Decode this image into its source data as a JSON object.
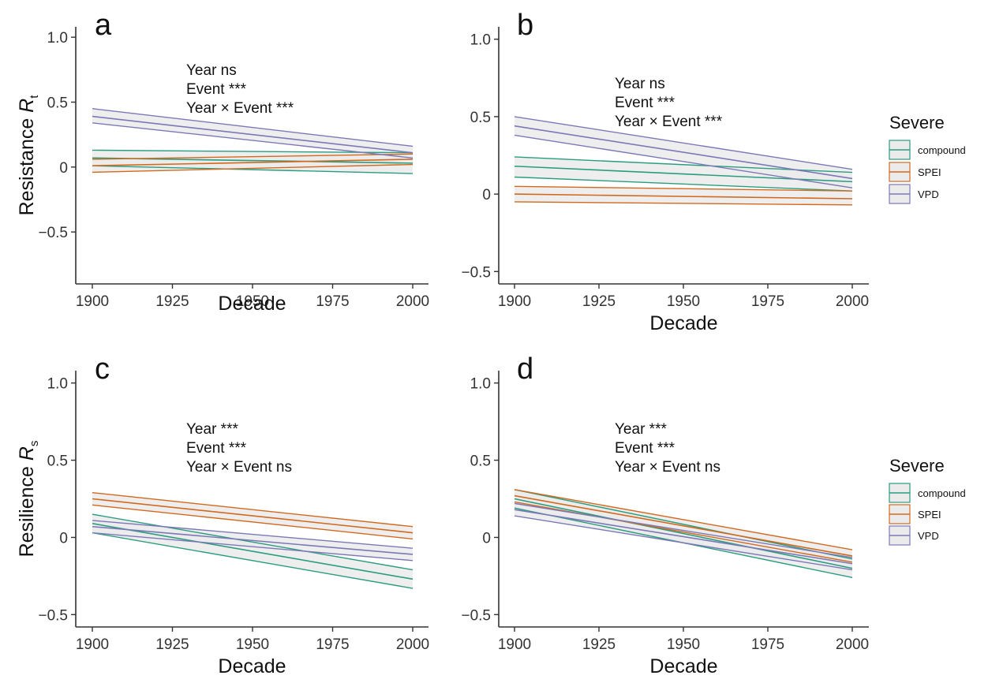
{
  "colors": {
    "compound": "#2a9d7e",
    "SPEI": "#d2691e",
    "VPD": "#7c78b8",
    "band_fill": "#ebebeb"
  },
  "legend": {
    "title": "Severe",
    "entries": [
      "compound",
      "SPEI",
      "VPD"
    ]
  },
  "chart_data": [
    {
      "panel": "a",
      "type": "line",
      "xlabel": "Decade",
      "ylabel_main": "Resistance ",
      "ylabel_sub": "t",
      "xlim": [
        1900,
        2000
      ],
      "ylim": [
        -0.9,
        1.08
      ],
      "xticks": [
        1900,
        1925,
        1950,
        1975,
        2000
      ],
      "yticks": [
        -0.5,
        0,
        0.5,
        1.0
      ],
      "ytick_labels": [
        "−0.5",
        "0",
        "0.5",
        "1.0"
      ],
      "annotation": [
        "Year ns",
        "Event ***",
        "Year × Event ***"
      ],
      "series": [
        {
          "name": "compound",
          "x": [
            1900,
            2000
          ],
          "y": [
            0.07,
            0.03
          ],
          "lower": [
            0.01,
            -0.05
          ],
          "upper": [
            0.13,
            0.11
          ]
        },
        {
          "name": "SPEI",
          "x": [
            1900,
            2000
          ],
          "y": [
            0.01,
            0.06
          ],
          "lower": [
            -0.04,
            0.02
          ],
          "upper": [
            0.06,
            0.1
          ]
        },
        {
          "name": "VPD",
          "x": [
            1900,
            2000
          ],
          "y": [
            0.39,
            0.11
          ],
          "lower": [
            0.34,
            0.07
          ],
          "upper": [
            0.45,
            0.16
          ]
        }
      ]
    },
    {
      "panel": "b",
      "type": "line",
      "xlabel": "Decade",
      "ylabel_main": "",
      "ylabel_sub": "",
      "xlim": [
        1900,
        2000
      ],
      "ylim": [
        -0.58,
        1.08
      ],
      "xticks": [
        1900,
        1925,
        1950,
        1975,
        2000
      ],
      "yticks": [
        -0.5,
        0,
        0.5,
        1.0
      ],
      "ytick_labels": [
        "−0.5",
        "0",
        "0.5",
        "1.0"
      ],
      "annotation": [
        "Year ns",
        "Event ***",
        "Year × Event ***"
      ],
      "series": [
        {
          "name": "compound",
          "x": [
            1900,
            2000
          ],
          "y": [
            0.18,
            0.08
          ],
          "lower": [
            0.11,
            0.02
          ],
          "upper": [
            0.24,
            0.14
          ]
        },
        {
          "name": "SPEI",
          "x": [
            1900,
            2000
          ],
          "y": [
            0.0,
            -0.03
          ],
          "lower": [
            -0.05,
            -0.07
          ],
          "upper": [
            0.05,
            0.02
          ]
        },
        {
          "name": "VPD",
          "x": [
            1900,
            2000
          ],
          "y": [
            0.44,
            0.1
          ],
          "lower": [
            0.38,
            0.04
          ],
          "upper": [
            0.5,
            0.16
          ]
        }
      ]
    },
    {
      "panel": "c",
      "type": "line",
      "xlabel": "Decade",
      "ylabel_main": "Resilience ",
      "ylabel_sub": "s",
      "xlim": [
        1900,
        2000
      ],
      "ylim": [
        -0.58,
        1.08
      ],
      "xticks": [
        1900,
        1925,
        1950,
        1975,
        2000
      ],
      "yticks": [
        -0.5,
        0,
        0.5,
        1.0
      ],
      "ytick_labels": [
        "−0.5",
        "0",
        "0.5",
        "1.0"
      ],
      "annotation": [
        "Year ***",
        "Event ***",
        "Year × Event ns"
      ],
      "series": [
        {
          "name": "compound",
          "x": [
            1900,
            2000
          ],
          "y": [
            0.09,
            -0.27
          ],
          "lower": [
            0.03,
            -0.33
          ],
          "upper": [
            0.15,
            -0.21
          ]
        },
        {
          "name": "SPEI",
          "x": [
            1900,
            2000
          ],
          "y": [
            0.25,
            0.03
          ],
          "lower": [
            0.21,
            -0.01
          ],
          "upper": [
            0.29,
            0.07
          ]
        },
        {
          "name": "VPD",
          "x": [
            1900,
            2000
          ],
          "y": [
            0.07,
            -0.11
          ],
          "lower": [
            0.03,
            -0.15
          ],
          "upper": [
            0.11,
            -0.07
          ]
        }
      ]
    },
    {
      "panel": "d",
      "type": "line",
      "xlabel": "Decade",
      "ylabel_main": "",
      "ylabel_sub": "",
      "xlim": [
        1900,
        2000
      ],
      "ylim": [
        -0.58,
        1.08
      ],
      "xticks": [
        1900,
        1925,
        1950,
        1975,
        2000
      ],
      "yticks": [
        -0.5,
        0,
        0.5,
        1.0
      ],
      "ytick_labels": [
        "−0.5",
        "0",
        "0.5",
        "1.0"
      ],
      "annotation": [
        "Year ***",
        "Event ***",
        "Year × Event ns"
      ],
      "series": [
        {
          "name": "compound",
          "x": [
            1900,
            2000
          ],
          "y": [
            0.25,
            -0.2
          ],
          "lower": [
            0.19,
            -0.26
          ],
          "upper": [
            0.31,
            -0.14
          ]
        },
        {
          "name": "SPEI",
          "x": [
            1900,
            2000
          ],
          "y": [
            0.27,
            -0.12
          ],
          "lower": [
            0.23,
            -0.16
          ],
          "upper": [
            0.31,
            -0.08
          ]
        },
        {
          "name": "VPD",
          "x": [
            1900,
            2000
          ],
          "y": [
            0.18,
            -0.17
          ],
          "lower": [
            0.14,
            -0.21
          ],
          "upper": [
            0.22,
            -0.13
          ]
        }
      ]
    }
  ]
}
